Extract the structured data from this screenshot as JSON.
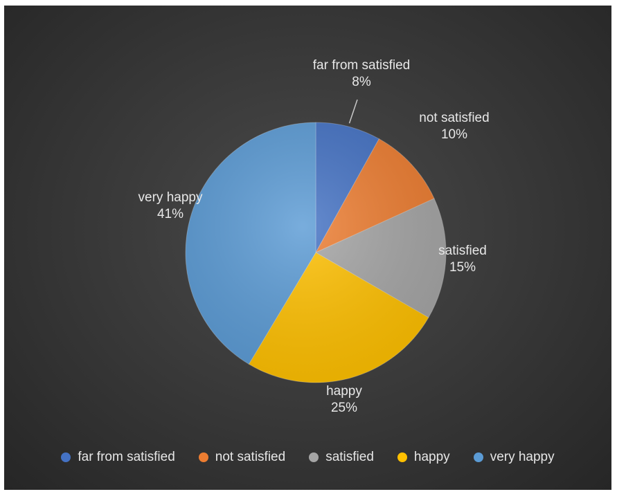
{
  "chart_data": {
    "type": "pie",
    "title": "",
    "categories": [
      "far from satisfied",
      "not satisfied",
      "satisfied",
      "happy",
      "very happy"
    ],
    "values": [
      8,
      10,
      15,
      25,
      41
    ],
    "value_labels": [
      "8%",
      "10%",
      "15%",
      "25%",
      "41%"
    ],
    "colors": [
      "#4472c4",
      "#ed7d31",
      "#a5a5a5",
      "#ffc000",
      "#5b9bd5"
    ],
    "legend_position": "bottom"
  }
}
